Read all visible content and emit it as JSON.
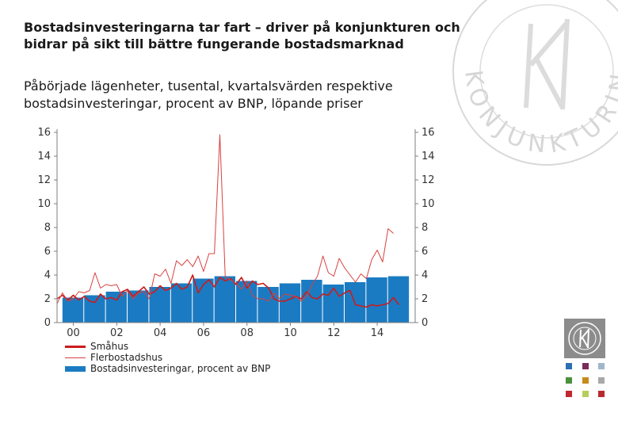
{
  "title": "Bostadsinvesteringarna tar fart – driver på konjunkturen och bidrar på sikt till bättre fungerande bostadsmarknad",
  "subtitle": "Påbörjade lägenheter, tusental, kvartalsvärden respektive bostadsinvesteringar, procent av BNP, löpande priser",
  "watermark_text": "KONJUNKTURINSTITUTET",
  "colors": {
    "smahus": "#cc1b1b",
    "flerbostadshus": "#d94040",
    "bars": "#1b7bc2",
    "axis": "#7f7f7f"
  },
  "chart_data": {
    "type": "bar+line",
    "title": "",
    "xlabel": "",
    "ylabel_left": "",
    "ylabel_right": "",
    "x_start_year": 1999.75,
    "x_range": [
      1999.75,
      2016.25
    ],
    "xticks": [
      {
        "label": "00",
        "year": 2000.5
      },
      {
        "label": "02",
        "year": 2002.5
      },
      {
        "label": "04",
        "year": 2004.5
      },
      {
        "label": "06",
        "year": 2006.5
      },
      {
        "label": "08",
        "year": 2008.5
      },
      {
        "label": "10",
        "year": 2010.5
      },
      {
        "label": "12",
        "year": 2012.5
      },
      {
        "label": "14",
        "year": 2014.5
      }
    ],
    "ylim": [
      0,
      16
    ],
    "yticks": [
      0,
      2,
      4,
      6,
      8,
      10,
      12,
      14,
      16
    ],
    "grid": false,
    "legend_position": "bottom-left",
    "bars": {
      "name": "Bostadsinvesteringar, procent av BNP",
      "years": [
        2000,
        2001,
        2002,
        2003,
        2004,
        2005,
        2006,
        2007,
        2008,
        2009,
        2010,
        2011,
        2012,
        2013,
        2014,
        2015
      ],
      "values": [
        2.1,
        2.3,
        2.6,
        2.7,
        3.0,
        3.3,
        3.7,
        3.9,
        3.5,
        3.0,
        3.3,
        3.6,
        3.2,
        3.4,
        3.8,
        3.9
      ]
    },
    "series": [
      {
        "name": "Småhus",
        "values": [
          2.0,
          2.3,
          1.9,
          2.3,
          1.9,
          2.2,
          1.8,
          1.7,
          2.4,
          2.0,
          2.1,
          1.9,
          2.6,
          2.8,
          2.2,
          2.6,
          3.0,
          2.4,
          2.6,
          3.1,
          2.7,
          2.9,
          3.3,
          2.8,
          3.0,
          4.0,
          2.5,
          3.2,
          3.6,
          3.0,
          3.8,
          3.5,
          3.7,
          3.2,
          3.8,
          2.9,
          3.5,
          3.2,
          3.3,
          2.9,
          2.0,
          1.8,
          1.8,
          2.0,
          2.2,
          2.0,
          2.6,
          2.1,
          2.0,
          2.4,
          2.3,
          2.9,
          2.2,
          2.5,
          2.7,
          1.5,
          1.4,
          1.3,
          1.5,
          1.4,
          1.5,
          1.6,
          2.1,
          1.5
        ]
      },
      {
        "name": "Flerbostadshus",
        "values": [
          1.6,
          2.5,
          1.8,
          2.0,
          2.6,
          2.5,
          2.7,
          4.2,
          2.9,
          3.2,
          3.1,
          3.2,
          2.2,
          2.7,
          2.0,
          2.5,
          2.6,
          2.0,
          4.1,
          3.9,
          4.5,
          3.3,
          5.2,
          4.8,
          5.3,
          4.7,
          5.6,
          4.3,
          5.8,
          5.8,
          15.8,
          3.8,
          3.6,
          3.3,
          2.8,
          3.5,
          2.3,
          2.0,
          2.0,
          1.8,
          2.5,
          2.0,
          2.4,
          2.3,
          2.2,
          1.8,
          2.2,
          3.2,
          3.9,
          5.6,
          4.2,
          3.9,
          5.4,
          4.6,
          4.0,
          3.4,
          4.1,
          3.7,
          5.3,
          6.1,
          5.1,
          7.9,
          7.5
        ]
      }
    ]
  }
}
